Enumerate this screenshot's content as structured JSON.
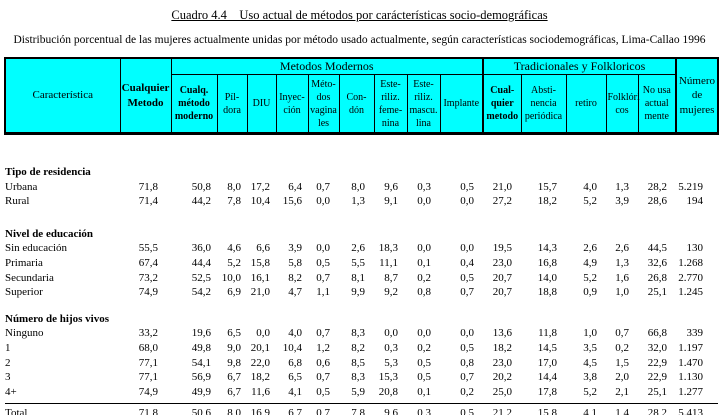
{
  "title": "Cuadro 4.4    Uso actual de métodos por carácterísticas socio-demográficas",
  "subtitle": "Distribución porcentual de las mujeres actualmente unidas por método usado actualmente, según características sociodemográficas, Lima-Callao 1996",
  "colors": {
    "header_background": "#00ffff",
    "border": "#000000",
    "page_background": "#ffffff"
  },
  "table": {
    "header": {
      "caracteristica": "Característica",
      "cualquier_metodo": "Cualquier\nMetodo",
      "modern_group": "Metodos Modernos",
      "modern_cols": [
        "Cualq.\nmétodo\nmoderno",
        "Píl-\ndora",
        "DIU",
        "Inyec-\nción",
        "Méto-\ndos\nvagina\nles",
        "Con-\ndón",
        "Este-\nriliz.\nfeme-\nnina",
        "Este-\nriliz.\nmascu.\nlina",
        "Implante"
      ],
      "trad_group": "Tradicionales y Folkloricos",
      "trad_cols": [
        "Cual-\nquier\nmetodo",
        "Absti-\nnencia\nperiódica",
        "retiro",
        "Folklóri\ncos",
        "No usa\nactual\nmente"
      ],
      "numero_mujeres": "Número\nde\nmujeres"
    },
    "sections": [
      {
        "label": "Tipo de residencia",
        "rows": [
          {
            "label": "Urbana",
            "values": [
              "71,8",
              "50,8",
              "8,0",
              "17,2",
              "6,4",
              "0,7",
              "8,0",
              "9,6",
              "0,3",
              "0,5",
              "21,0",
              "15,7",
              "4,0",
              "1,3",
              "28,2",
              "5.219"
            ]
          },
          {
            "label": "Rural",
            "values": [
              "71,4",
              "44,2",
              "7,8",
              "10,4",
              "15,6",
              "0,0",
              "1,3",
              "9,1",
              "0,0",
              "0,0",
              "27,2",
              "18,2",
              "5,2",
              "3,9",
              "28,6",
              "194"
            ]
          }
        ]
      },
      {
        "label": "Nivel de educación",
        "rows": [
          {
            "label": "Sin educación",
            "values": [
              "55,5",
              "36,0",
              "4,6",
              "6,6",
              "3,9",
              "0,0",
              "2,6",
              "18,3",
              "0,0",
              "0,0",
              "19,5",
              "14,3",
              "2,6",
              "2,6",
              "44,5",
              "130"
            ]
          },
          {
            "label": "Primaria",
            "values": [
              "67,4",
              "44,4",
              "5,2",
              "15,8",
              "5,8",
              "0,5",
              "5,5",
              "11,1",
              "0,1",
              "0,4",
              "23,0",
              "16,8",
              "4,9",
              "1,3",
              "32,6",
              "1.268"
            ]
          },
          {
            "label": "Secundaria",
            "values": [
              "73,2",
              "52,5",
              "10,0",
              "16,1",
              "8,2",
              "0,7",
              "8,1",
              "8,7",
              "0,2",
              "0,5",
              "20,7",
              "14,0",
              "5,2",
              "1,6",
              "26,8",
              "2.770"
            ]
          },
          {
            "label": "Superior",
            "values": [
              "74,9",
              "54,2",
              "6,9",
              "21,0",
              "4,7",
              "1,1",
              "9,9",
              "9,2",
              "0,8",
              "0,7",
              "20,7",
              "18,8",
              "0,9",
              "1,0",
              "25,1",
              "1.245"
            ]
          }
        ]
      },
      {
        "label": "Número de hijos vivos",
        "rows": [
          {
            "label": "Ninguno",
            "values": [
              "33,2",
              "19,6",
              "6,5",
              "0,0",
              "4,0",
              "0,7",
              "8,3",
              "0,0",
              "0,0",
              "0,0",
              "13,6",
              "11,8",
              "1,0",
              "0,7",
              "66,8",
              "339"
            ]
          },
          {
            "label": "1",
            "values": [
              "68,0",
              "49,8",
              "9,0",
              "20,1",
              "10,4",
              "1,2",
              "8,2",
              "0,3",
              "0,2",
              "0,5",
              "18,2",
              "14,5",
              "3,5",
              "0,2",
              "32,0",
              "1.197"
            ]
          },
          {
            "label": "2",
            "values": [
              "77,1",
              "54,1",
              "9,8",
              "22,0",
              "6,8",
              "0,6",
              "8,5",
              "5,3",
              "0,5",
              "0,8",
              "23,0",
              "17,0",
              "4,5",
              "1,5",
              "22,9",
              "1.470"
            ]
          },
          {
            "label": "3",
            "values": [
              "77,1",
              "56,9",
              "6,7",
              "18,2",
              "6,5",
              "0,7",
              "8,3",
              "15,3",
              "0,5",
              "0,7",
              "20,2",
              "14,4",
              "3,8",
              "2,0",
              "22,9",
              "1.130"
            ]
          },
          {
            "label": "4+",
            "values": [
              "74,9",
              "49,9",
              "6,7",
              "11,6",
              "4,1",
              "0,5",
              "5,9",
              "20,8",
              "0,1",
              "0,2",
              "25,0",
              "17,8",
              "5,2",
              "2,1",
              "25,1",
              "1.277"
            ]
          }
        ]
      }
    ],
    "total": {
      "label": "Total",
      "values": [
        "71,8",
        "50,6",
        "8,0",
        "16,9",
        "6,7",
        "0,7",
        "7,8",
        "9,6",
        "0,3",
        "0,5",
        "21,2",
        "15,8",
        "4,1",
        "1,4",
        "28,2",
        "5.413"
      ]
    }
  }
}
